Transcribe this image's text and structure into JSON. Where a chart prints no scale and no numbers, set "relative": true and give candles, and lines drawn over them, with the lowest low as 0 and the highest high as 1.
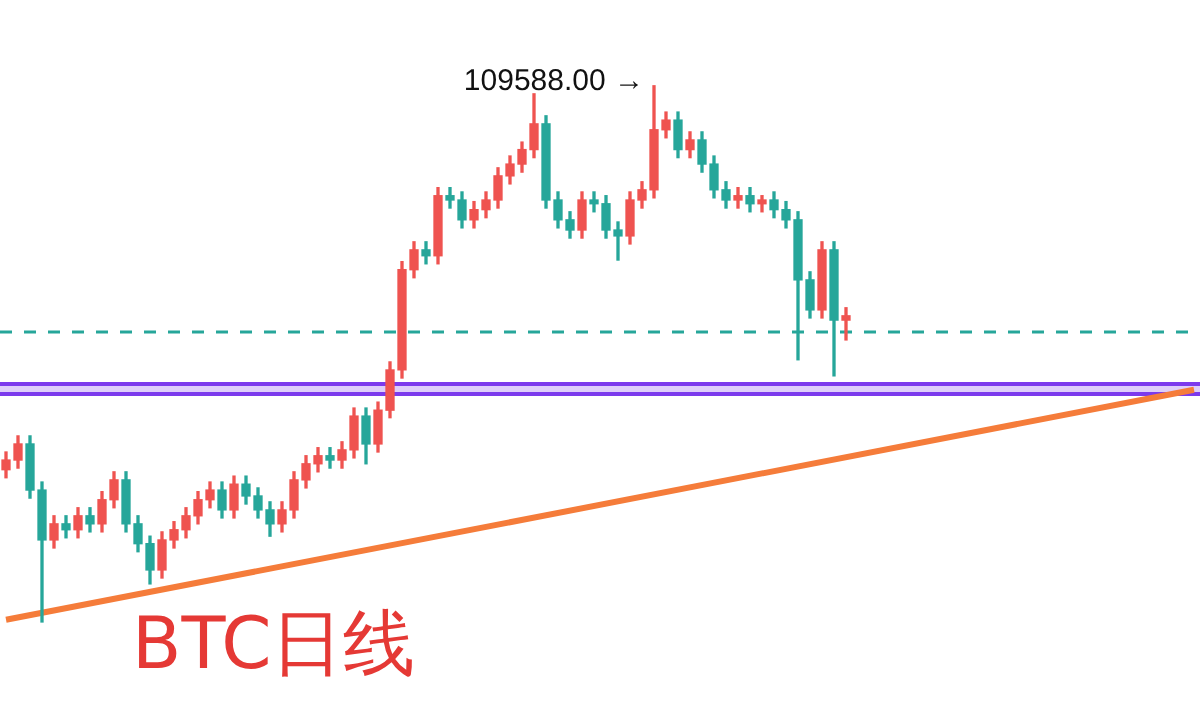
{
  "chart_data": {
    "type": "candlestick",
    "title": "BTC日线",
    "relative": true,
    "categories": [
      null,
      null,
      null,
      null,
      null,
      null,
      null,
      null,
      null,
      null,
      null,
      null,
      null,
      null,
      null,
      null,
      null,
      null,
      null,
      null,
      null,
      null,
      null,
      null,
      null,
      null,
      null,
      null,
      null,
      null,
      null,
      null,
      null,
      null,
      null,
      null,
      null,
      null,
      null,
      null,
      null,
      null,
      null,
      null,
      null,
      null,
      null,
      null,
      null,
      null,
      null,
      null,
      null,
      null,
      null,
      null,
      null,
      null,
      null,
      null,
      null,
      null,
      null,
      null,
      null,
      null,
      null,
      null,
      null,
      null,
      null,
      null,
      null,
      null,
      null,
      null,
      null,
      null,
      null,
      null,
      null,
      null,
      null,
      null,
      null,
      null,
      null,
      null,
      null,
      null,
      null,
      null,
      null,
      null,
      null,
      null,
      null,
      null,
      null,
      null
    ],
    "ohlc": [
      [
        0.284,
        0.317,
        0.269,
        0.302
      ],
      [
        0.302,
        0.347,
        0.287,
        0.332
      ],
      [
        0.332,
        0.347,
        0.231,
        0.246
      ],
      [
        0.246,
        0.261,
        0,
        0.153
      ],
      [
        0.153,
        0.198,
        0.138,
        0.183
      ],
      [
        0.183,
        0.198,
        0.157,
        0.172
      ],
      [
        0.172,
        0.213,
        0.157,
        0.198
      ],
      [
        0.198,
        0.213,
        0.168,
        0.183
      ],
      [
        0.183,
        0.243,
        0.168,
        0.228
      ],
      [
        0.228,
        0.28,
        0.213,
        0.265
      ],
      [
        0.265,
        0.28,
        0.168,
        0.183
      ],
      [
        0.183,
        0.198,
        0.131,
        0.146
      ],
      [
        0.146,
        0.16,
        0.071,
        0.097
      ],
      [
        0.097,
        0.168,
        0.082,
        0.153
      ],
      [
        0.153,
        0.187,
        0.138,
        0.172
      ],
      [
        0.172,
        0.213,
        0.157,
        0.198
      ],
      [
        0.198,
        0.243,
        0.183,
        0.228
      ],
      [
        0.228,
        0.261,
        0.213,
        0.246
      ],
      [
        0.246,
        0.261,
        0.194,
        0.209
      ],
      [
        0.209,
        0.272,
        0.194,
        0.257
      ],
      [
        0.257,
        0.272,
        0.22,
        0.235
      ],
      [
        0.235,
        0.25,
        0.194,
        0.209
      ],
      [
        0.209,
        0.224,
        0.16,
        0.183
      ],
      [
        0.183,
        0.224,
        0.168,
        0.209
      ],
      [
        0.209,
        0.28,
        0.194,
        0.265
      ],
      [
        0.265,
        0.31,
        0.25,
        0.295
      ],
      [
        0.295,
        0.325,
        0.28,
        0.31
      ],
      [
        0.31,
        0.325,
        0.287,
        0.302
      ],
      [
        0.302,
        0.336,
        0.287,
        0.321
      ],
      [
        0.321,
        0.399,
        0.306,
        0.384
      ],
      [
        0.384,
        0.399,
        0.295,
        0.332
      ],
      [
        0.332,
        0.41,
        0.317,
        0.395
      ],
      [
        0.395,
        0.485,
        0.381,
        0.47
      ],
      [
        0.47,
        0.672,
        0.455,
        0.657
      ],
      [
        0.657,
        0.709,
        0.642,
        0.694
      ],
      [
        0.694,
        0.709,
        0.668,
        0.683
      ],
      [
        0.683,
        0.81,
        0.668,
        0.795
      ],
      [
        0.795,
        0.81,
        0.772,
        0.787
      ],
      [
        0.787,
        0.802,
        0.735,
        0.75
      ],
      [
        0.75,
        0.784,
        0.735,
        0.769
      ],
      [
        0.769,
        0.802,
        0.754,
        0.787
      ],
      [
        0.787,
        0.847,
        0.772,
        0.832
      ],
      [
        0.832,
        0.869,
        0.817,
        0.854
      ],
      [
        0.854,
        0.895,
        0.839,
        0.881
      ],
      [
        0.881,
        0.985,
        0.866,
        0.929
      ],
      [
        0.929,
        0.944,
        0.772,
        0.787
      ],
      [
        0.787,
        0.802,
        0.735,
        0.75
      ],
      [
        0.75,
        0.765,
        0.716,
        0.731
      ],
      [
        0.731,
        0.802,
        0.716,
        0.787
      ],
      [
        0.787,
        0.802,
        0.765,
        0.78
      ],
      [
        0.78,
        0.795,
        0.716,
        0.731
      ],
      [
        0.731,
        0.746,
        0.675,
        0.72
      ],
      [
        0.72,
        0.802,
        0.705,
        0.787
      ],
      [
        0.787,
        0.821,
        0.772,
        0.806
      ],
      [
        0.806,
        1,
        0.791,
        0.918
      ],
      [
        0.918,
        0.951,
        0.903,
        0.936
      ],
      [
        0.936,
        0.951,
        0.866,
        0.881
      ],
      [
        0.881,
        0.914,
        0.866,
        0.899
      ],
      [
        0.899,
        0.914,
        0.839,
        0.854
      ],
      [
        0.854,
        0.869,
        0.791,
        0.806
      ],
      [
        0.806,
        0.821,
        0.772,
        0.787
      ],
      [
        0.787,
        0.81,
        0.772,
        0.795
      ],
      [
        0.795,
        0.81,
        0.765,
        0.78
      ],
      [
        0.78,
        0.795,
        0.765,
        0.787
      ],
      [
        0.787,
        0.802,
        0.754,
        0.769
      ],
      [
        0.769,
        0.784,
        0.735,
        0.75
      ],
      [
        0.75,
        0.765,
        0.489,
        0.638
      ],
      [
        0.638,
        0.653,
        0.567,
        0.582
      ],
      [
        0.582,
        0.709,
        0.567,
        0.694
      ],
      [
        0.694,
        0.709,
        0.459,
        0.563
      ],
      [
        0.563,
        0.586,
        0.526,
        0.571
      ],
      null,
      null,
      null,
      null,
      null,
      null,
      null,
      null,
      null,
      null,
      null,
      null,
      null,
      null,
      null,
      null,
      null,
      null,
      null,
      null,
      null,
      null,
      null,
      null,
      null,
      null,
      null,
      null,
      null
    ],
    "colors": [
      "#ef5350",
      "#ef5350",
      "#26a69a",
      "#26a69a",
      "#ef5350",
      "#26a69a",
      "#ef5350",
      "#26a69a",
      "#ef5350",
      "#ef5350",
      "#26a69a",
      "#26a69a",
      "#26a69a",
      "#ef5350",
      "#ef5350",
      "#ef5350",
      "#ef5350",
      "#ef5350",
      "#26a69a",
      "#ef5350",
      "#26a69a",
      "#26a69a",
      "#26a69a",
      "#ef5350",
      "#ef5350",
      "#ef5350",
      "#ef5350",
      "#26a69a",
      "#ef5350",
      "#ef5350",
      "#26a69a",
      "#ef5350",
      "#ef5350",
      "#ef5350",
      "#ef5350",
      "#26a69a",
      "#ef5350",
      "#26a69a",
      "#26a69a",
      "#ef5350",
      "#ef5350",
      "#ef5350",
      "#ef5350",
      "#ef5350",
      "#ef5350",
      "#26a69a",
      "#26a69a",
      "#26a69a",
      "#ef5350",
      "#26a69a",
      "#26a69a",
      "#26a69a",
      "#ef5350",
      "#ef5350",
      "#ef5350",
      "#ef5350",
      "#26a69a",
      "#ef5350",
      "#26a69a",
      "#26a69a",
      "#26a69a",
      "#ef5350",
      "#26a69a",
      "#ef5350",
      "#26a69a",
      "#26a69a",
      "#26a69a",
      "#26a69a",
      "#ef5350",
      "#26a69a",
      "#ef5350",
      null,
      null,
      null,
      null,
      null,
      null,
      null,
      null,
      null,
      null,
      null,
      null,
      null,
      null,
      null,
      null,
      null,
      null,
      null,
      null,
      null,
      null,
      null,
      null,
      null,
      null,
      null,
      null,
      null
    ],
    "series": [
      {
        "type": "line",
        "color": "#f57c3a",
        "values": [
          0.004,
          null,
          null,
          null,
          null,
          null,
          null,
          null,
          null,
          null,
          null,
          null,
          null,
          null,
          null,
          null,
          null,
          null,
          null,
          null,
          null,
          null,
          null,
          null,
          null,
          null,
          null,
          null,
          null,
          null,
          null,
          null,
          null,
          null,
          null,
          null,
          null,
          null,
          null,
          null,
          null,
          null,
          null,
          null,
          null,
          null,
          null,
          null,
          null,
          null,
          null,
          null,
          null,
          null,
          null,
          null,
          null,
          null,
          null,
          null,
          null,
          null,
          null,
          null,
          null,
          null,
          null,
          null,
          null,
          null,
          null,
          null,
          null,
          null,
          null,
          null,
          null,
          null,
          null,
          null,
          null,
          null,
          null,
          null,
          null,
          null,
          null,
          null,
          null,
          null,
          null,
          null,
          null,
          null,
          null,
          null,
          null,
          null,
          null,
          0.433
        ]
      }
    ],
    "ref_lines": [
      {
        "axis": "y",
        "value": 0.541,
        "color": "#26a69a",
        "line_style": "dashed"
      },
      {
        "axis": "y",
        "value": 0.444,
        "color": "#7c3aed",
        "line_style": "solid"
      },
      {
        "axis": "y",
        "value": 0.425,
        "color": "#7c3aed",
        "line_style": "solid"
      }
    ],
    "bands": [
      {
        "axis": "y",
        "from": 0.425,
        "to": 0.444,
        "color": "#7c3aed"
      }
    ],
    "annotations": [
      "109588.00 →"
    ]
  }
}
